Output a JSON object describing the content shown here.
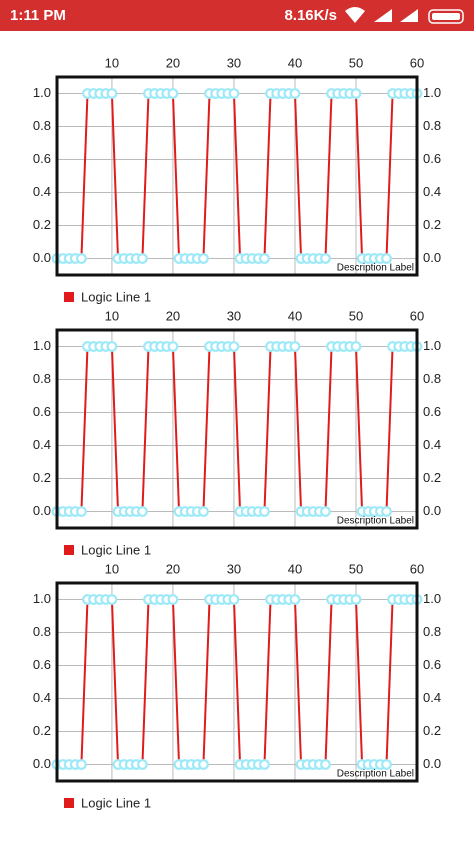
{
  "status_bar": {
    "time": "1:11 PM",
    "speed": "8.16K/s"
  },
  "chart_data": [
    {
      "type": "line",
      "description": "Description Label",
      "grid": true,
      "circle_color": "#9ee9f7",
      "x": [
        1,
        2,
        3,
        4,
        5,
        6,
        7,
        8,
        9,
        10,
        11,
        12,
        13,
        14,
        15,
        16,
        17,
        18,
        19,
        20,
        21,
        22,
        23,
        24,
        25,
        26,
        27,
        28,
        29,
        30,
        31,
        32,
        33,
        34,
        35,
        36,
        37,
        38,
        39,
        40,
        41,
        42,
        43,
        44,
        45,
        46,
        47,
        48,
        49,
        50,
        51,
        52,
        53,
        54,
        55,
        56,
        57,
        58,
        59,
        60
      ],
      "series": [
        {
          "name": "Logic Line 1",
          "color": "#e01b1b",
          "values": [
            0,
            0,
            0,
            0,
            0,
            1,
            1,
            1,
            1,
            1,
            0,
            0,
            0,
            0,
            0,
            1,
            1,
            1,
            1,
            1,
            0,
            0,
            0,
            0,
            0,
            1,
            1,
            1,
            1,
            1,
            0,
            0,
            0,
            0,
            0,
            1,
            1,
            1,
            1,
            1,
            0,
            0,
            0,
            0,
            0,
            1,
            1,
            1,
            1,
            1,
            0,
            0,
            0,
            0,
            0,
            1,
            1,
            1,
            1,
            1
          ]
        }
      ],
      "xlim": [
        1,
        60
      ],
      "xticks": [
        10,
        20,
        30,
        40,
        50,
        60
      ],
      "ylim": [
        -0.1,
        1.1
      ],
      "yticks": [
        {
          "value": 0,
          "label": "0.0"
        },
        {
          "value": 0.2,
          "label": "0.2"
        },
        {
          "value": 0.4,
          "label": "0.4"
        },
        {
          "value": 0.6,
          "label": "0.6"
        },
        {
          "value": 0.8,
          "label": "0.8"
        },
        {
          "value": 1,
          "label": "1.0"
        }
      ]
    },
    {
      "type": "line",
      "description": "Description Label",
      "grid": true,
      "circle_color": "#9ee9f7",
      "x": [
        1,
        2,
        3,
        4,
        5,
        6,
        7,
        8,
        9,
        10,
        11,
        12,
        13,
        14,
        15,
        16,
        17,
        18,
        19,
        20,
        21,
        22,
        23,
        24,
        25,
        26,
        27,
        28,
        29,
        30,
        31,
        32,
        33,
        34,
        35,
        36,
        37,
        38,
        39,
        40,
        41,
        42,
        43,
        44,
        45,
        46,
        47,
        48,
        49,
        50,
        51,
        52,
        53,
        54,
        55,
        56,
        57,
        58,
        59,
        60
      ],
      "series": [
        {
          "name": "Logic Line 1",
          "color": "#e01b1b",
          "values": [
            0,
            0,
            0,
            0,
            0,
            1,
            1,
            1,
            1,
            1,
            0,
            0,
            0,
            0,
            0,
            1,
            1,
            1,
            1,
            1,
            0,
            0,
            0,
            0,
            0,
            1,
            1,
            1,
            1,
            1,
            0,
            0,
            0,
            0,
            0,
            1,
            1,
            1,
            1,
            1,
            0,
            0,
            0,
            0,
            0,
            1,
            1,
            1,
            1,
            1,
            0,
            0,
            0,
            0,
            0,
            1,
            1,
            1,
            1,
            1
          ]
        }
      ],
      "xlim": [
        1,
        60
      ],
      "xticks": [
        10,
        20,
        30,
        40,
        50,
        60
      ],
      "ylim": [
        -0.1,
        1.1
      ],
      "yticks": [
        {
          "value": 0,
          "label": "0.0"
        },
        {
          "value": 0.2,
          "label": "0.2"
        },
        {
          "value": 0.4,
          "label": "0.4"
        },
        {
          "value": 0.6,
          "label": "0.6"
        },
        {
          "value": 0.8,
          "label": "0.8"
        },
        {
          "value": 1,
          "label": "1.0"
        }
      ]
    },
    {
      "type": "line",
      "description": "Description Label",
      "grid": true,
      "circle_color": "#9ee9f7",
      "x": [
        1,
        2,
        3,
        4,
        5,
        6,
        7,
        8,
        9,
        10,
        11,
        12,
        13,
        14,
        15,
        16,
        17,
        18,
        19,
        20,
        21,
        22,
        23,
        24,
        25,
        26,
        27,
        28,
        29,
        30,
        31,
        32,
        33,
        34,
        35,
        36,
        37,
        38,
        39,
        40,
        41,
        42,
        43,
        44,
        45,
        46,
        47,
        48,
        49,
        50,
        51,
        52,
        53,
        54,
        55,
        56,
        57,
        58,
        59,
        60
      ],
      "series": [
        {
          "name": "Logic Line 1",
          "color": "#e01b1b",
          "values": [
            0,
            0,
            0,
            0,
            0,
            1,
            1,
            1,
            1,
            1,
            0,
            0,
            0,
            0,
            0,
            1,
            1,
            1,
            1,
            1,
            0,
            0,
            0,
            0,
            0,
            1,
            1,
            1,
            1,
            1,
            0,
            0,
            0,
            0,
            0,
            1,
            1,
            1,
            1,
            1,
            0,
            0,
            0,
            0,
            0,
            1,
            1,
            1,
            1,
            1,
            0,
            0,
            0,
            0,
            0,
            1,
            1,
            1,
            1,
            1
          ]
        }
      ],
      "xlim": [
        1,
        60
      ],
      "xticks": [
        10,
        20,
        30,
        40,
        50,
        60
      ],
      "ylim": [
        -0.1,
        1.1
      ],
      "yticks": [
        {
          "value": 0,
          "label": "0.0"
        },
        {
          "value": 0.2,
          "label": "0.2"
        },
        {
          "value": 0.4,
          "label": "0.4"
        },
        {
          "value": 0.6,
          "label": "0.6"
        },
        {
          "value": 0.8,
          "label": "0.8"
        },
        {
          "value": 1,
          "label": "1.0"
        }
      ]
    }
  ]
}
